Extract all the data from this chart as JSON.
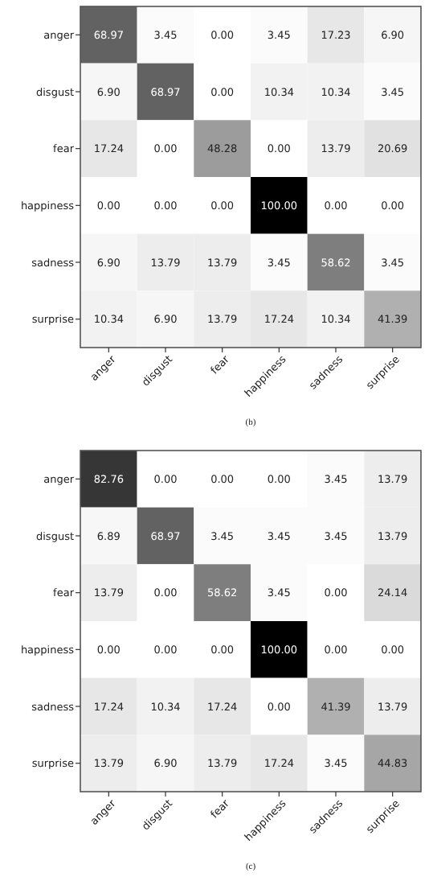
{
  "chart_data": [
    {
      "type": "heatmap",
      "annotations": [
        "(b)"
      ],
      "categories": [
        "anger",
        "disgust",
        "fear",
        "happiness",
        "sadness",
        "surprise"
      ],
      "y_categories": [
        "anger",
        "disgust",
        "fear",
        "happiness",
        "sadness",
        "surprise"
      ],
      "cells": [
        [
          68.97,
          3.45,
          0.0,
          3.45,
          17.23,
          6.9
        ],
        [
          6.9,
          68.97,
          0.0,
          10.34,
          10.34,
          3.45
        ],
        [
          17.24,
          0.0,
          48.28,
          0.0,
          13.79,
          20.69
        ],
        [
          0.0,
          0.0,
          0.0,
          100.0,
          0.0,
          0.0
        ],
        [
          6.9,
          13.79,
          13.79,
          3.45,
          58.62,
          3.45
        ],
        [
          10.34,
          6.9,
          13.79,
          17.24,
          10.34,
          41.39
        ]
      ],
      "cell_labels": [
        [
          "68.97",
          "3.45",
          "0.00",
          "3.45",
          "17.23",
          "6.90"
        ],
        [
          "6.90",
          "68.97",
          "0.00",
          "10.34",
          "10.34",
          "3.45"
        ],
        [
          "17.24",
          "0.00",
          "48.28",
          "0.00",
          "13.79",
          "20.69"
        ],
        [
          "0.00",
          "0.00",
          "0.00",
          "100.00",
          "0.00",
          "0.00"
        ],
        [
          "6.90",
          "13.79",
          "13.79",
          "3.45",
          "58.62",
          "3.45"
        ],
        [
          "10.34",
          "6.90",
          "13.79",
          "17.24",
          "10.34",
          "41.39"
        ]
      ]
    },
    {
      "type": "heatmap",
      "annotations": [
        "(c)"
      ],
      "categories": [
        "anger",
        "disgust",
        "fear",
        "happiness",
        "sadness",
        "surprise"
      ],
      "y_categories": [
        "anger",
        "disgust",
        "fear",
        "happiness",
        "sadness",
        "surprise"
      ],
      "cells": [
        [
          82.76,
          0.0,
          0.0,
          0.0,
          3.45,
          13.79
        ],
        [
          6.89,
          68.97,
          3.45,
          3.45,
          3.45,
          13.79
        ],
        [
          13.79,
          0.0,
          58.62,
          3.45,
          0.0,
          24.14
        ],
        [
          0.0,
          0.0,
          0.0,
          100.0,
          0.0,
          0.0
        ],
        [
          17.24,
          10.34,
          17.24,
          0.0,
          41.39,
          13.79
        ],
        [
          13.79,
          6.9,
          13.79,
          17.24,
          3.45,
          44.83
        ]
      ],
      "cell_labels": [
        [
          "82.76",
          "0.00",
          "0.00",
          "0.00",
          "3.45",
          "13.79"
        ],
        [
          "6.89",
          "68.97",
          "3.45",
          "3.45",
          "3.45",
          "13.79"
        ],
        [
          "13.79",
          "0.00",
          "58.62",
          "3.45",
          "0.00",
          "24.14"
        ],
        [
          "0.00",
          "0.00",
          "0.00",
          "100.00",
          "0.00",
          "0.00"
        ],
        [
          "17.24",
          "10.34",
          "17.24",
          "0.00",
          "41.39",
          "13.79"
        ],
        [
          "13.79",
          "6.90",
          "13.79",
          "17.24",
          "3.45",
          "44.83"
        ]
      ]
    }
  ]
}
